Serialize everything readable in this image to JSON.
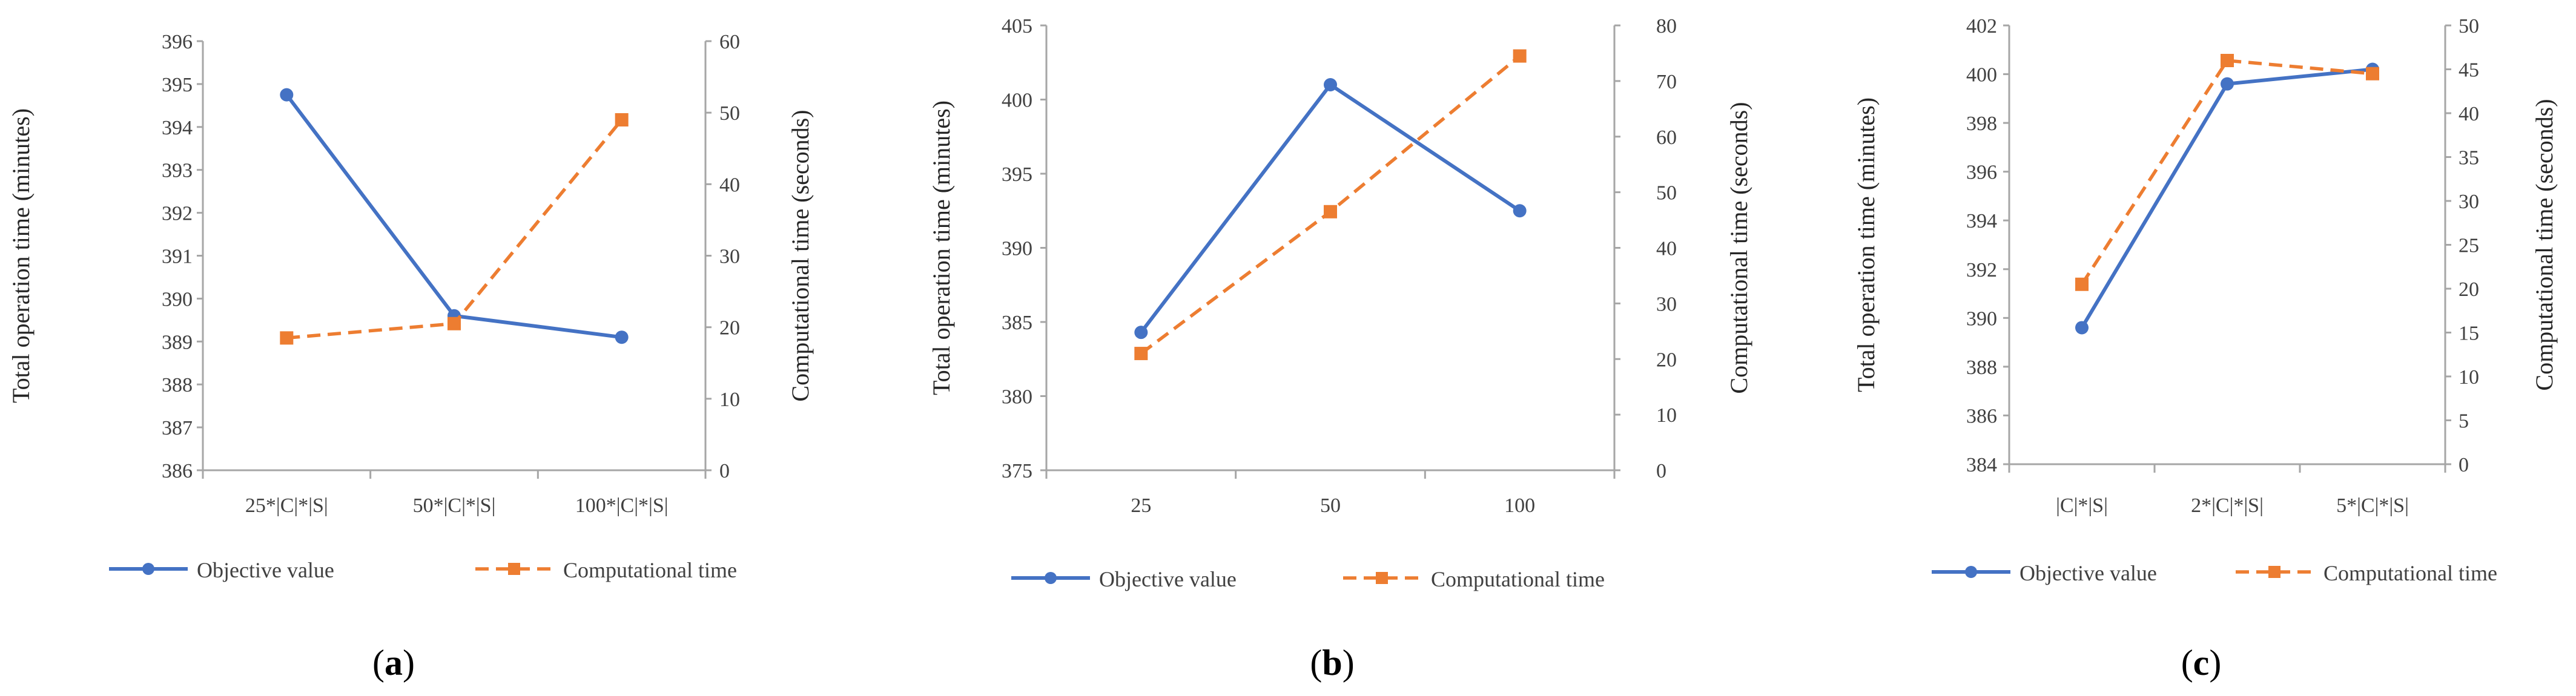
{
  "colors": {
    "objective": "#4472C4",
    "computational": "#ED7D31",
    "axis": "#A6A6A6",
    "text": "#404040"
  },
  "chart_data": [
    {
      "type": "line",
      "panel_label": "a",
      "categories": [
        "25*|C|*|S|",
        "50*|C|*|S|",
        "100*|C|*|S|"
      ],
      "series": [
        {
          "name": "Objective value",
          "axis": "left",
          "values": [
            394.75,
            389.6,
            389.1
          ]
        },
        {
          "name": "Computational time",
          "axis": "right",
          "values": [
            18.5,
            20.5,
            49.0
          ]
        }
      ],
      "ylabel": "Total operation time (minutes)",
      "y2label": "Computational time (seconds)",
      "ylim": [
        386,
        396
      ],
      "ystep": 1,
      "y2lim": [
        0,
        60
      ],
      "y2step": 10,
      "legend": [
        "Objective value",
        "Computational time"
      ],
      "legend_position": "bottom"
    },
    {
      "type": "line",
      "panel_label": "b",
      "categories": [
        "25",
        "50",
        "100"
      ],
      "series": [
        {
          "name": "Objective value",
          "axis": "left",
          "values": [
            384.3,
            401.0,
            392.5
          ]
        },
        {
          "name": "Computational time",
          "axis": "right",
          "values": [
            21.0,
            46.5,
            74.5
          ]
        }
      ],
      "ylabel": "Total operation time (minutes)",
      "y2label": "Computational time (seconds)",
      "ylim": [
        375,
        405
      ],
      "ystep": 5,
      "y2lim": [
        0,
        80
      ],
      "y2step": 10,
      "legend": [
        "Objective value",
        "Computational time"
      ],
      "legend_position": "bottom"
    },
    {
      "type": "line",
      "panel_label": "c",
      "categories": [
        "|C|*|S|",
        "2*|C|*|S|",
        "5*|C|*|S|"
      ],
      "series": [
        {
          "name": "Objective value",
          "axis": "left",
          "values": [
            389.6,
            399.6,
            400.2
          ]
        },
        {
          "name": "Computational time",
          "axis": "right",
          "values": [
            20.5,
            46.0,
            44.5
          ]
        }
      ],
      "ylabel": "Total operation time (minutes)",
      "y2label": "Computational time (seconds)",
      "ylim": [
        384,
        402
      ],
      "ystep": 2,
      "y2lim": [
        0,
        50
      ],
      "y2step": 5,
      "legend": [
        "Objective value",
        "Computational time"
      ],
      "legend_position": "bottom"
    }
  ]
}
